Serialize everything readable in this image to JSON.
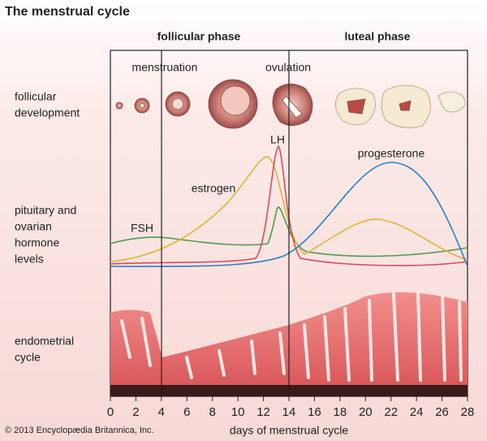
{
  "title": "The menstrual cycle",
  "phases": [
    "follicular phase",
    "luteal phase"
  ],
  "events": [
    "menstruation",
    "ovulation"
  ],
  "row_labels": [
    [
      "follicular",
      "development"
    ],
    [
      "pituitary and",
      "ovarian",
      "hormone",
      "levels"
    ],
    [
      "endometrial",
      "cycle"
    ]
  ],
  "hormones": [
    "FSH",
    "estrogen",
    "LH",
    "progesterone"
  ],
  "x_axis": {
    "label": "days of menstrual cycle",
    "xlim": [
      0,
      28
    ],
    "ticks": [
      0,
      2,
      4,
      6,
      8,
      10,
      12,
      14,
      16,
      18,
      20,
      22,
      24,
      26,
      28
    ]
  },
  "credit": "© 2013 Encyclopædia Britannica, Inc."
}
